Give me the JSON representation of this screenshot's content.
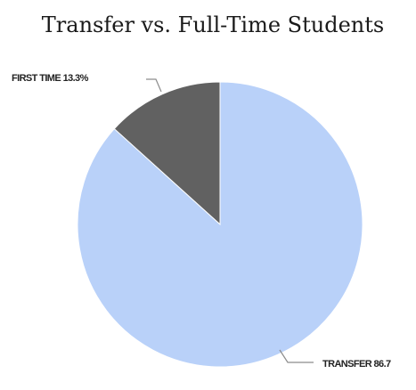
{
  "chart_data": {
    "type": "pie",
    "title": "Transfer vs. Full-Time Students",
    "slices": [
      {
        "label": "FIRST TIME",
        "value": 13.3,
        "display": "FIRST TIME 13.3%",
        "color": "#616161"
      },
      {
        "label": "TRANSFER",
        "value": 86.7,
        "display": "TRANSFER 86.7",
        "color": "#b9d1f9"
      }
    ],
    "legend": "none"
  }
}
